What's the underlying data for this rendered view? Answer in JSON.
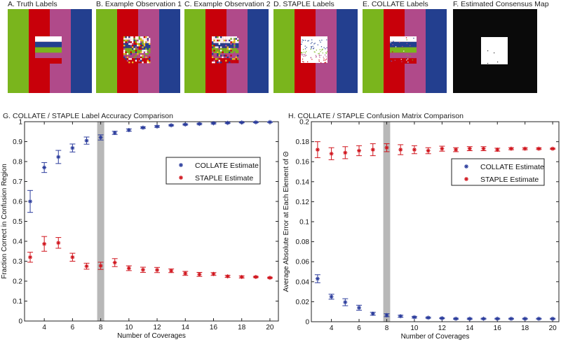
{
  "colors": {
    "green": "#7ab51d",
    "red": "#c8000a",
    "pink": "#b04a8a",
    "blue": "#233f8f",
    "white": "#ffffff",
    "black": "#0a0a0a",
    "collate": "#2b3c9c",
    "staple": "#d0141c",
    "band": "#b8b8b8"
  },
  "panels": [
    {
      "title": "A. Truth Labels",
      "kind": "truth"
    },
    {
      "title": "B. Example Observation 1",
      "kind": "noisy1"
    },
    {
      "title": "C. Example Observation 2",
      "kind": "noisy2"
    },
    {
      "title": "D. STAPLE Labels",
      "kind": "staple"
    },
    {
      "title": "E. COLLATE Labels",
      "kind": "collate"
    },
    {
      "title": "F. Estimated Consensus Map",
      "kind": "consensus"
    }
  ],
  "chart_data": [
    {
      "type": "scatter",
      "title": "G. COLLATE / STAPLE Label Accuracy Comparison",
      "xlabel": "Number of Coverages",
      "ylabel": "Fraction Correct in Confusion Region",
      "xlim": [
        2.6,
        20.6
      ],
      "ylim": [
        0,
        1
      ],
      "xticks": [
        4,
        6,
        8,
        10,
        12,
        14,
        16,
        18,
        20
      ],
      "yticks": [
        "0",
        "0.1",
        "0.2",
        "0.3",
        "0.4",
        "0.5",
        "0.6",
        "0.7",
        "0.8",
        "0.9",
        "1"
      ],
      "highlight_x": 8,
      "legend_position": "upper-right",
      "x": [
        3,
        4,
        5,
        6,
        7,
        8,
        9,
        10,
        11,
        12,
        13,
        14,
        15,
        16,
        17,
        18,
        19,
        20
      ],
      "series": [
        {
          "name": "COLLATE Estimate",
          "color_key": "collate",
          "values": [
            0.6,
            0.77,
            0.823,
            0.868,
            0.905,
            0.921,
            0.944,
            0.958,
            0.97,
            0.976,
            0.982,
            0.986,
            0.989,
            0.992,
            0.994,
            0.996,
            0.997,
            0.998
          ],
          "errors": [
            0.055,
            0.025,
            0.033,
            0.02,
            0.018,
            0.013,
            0.008,
            0.006,
            0.004,
            0.004,
            0.003,
            0.003,
            0.003,
            0.003,
            0.003,
            0.002,
            0.002,
            0.002
          ]
        },
        {
          "name": "STAPLE Estimate",
          "color_key": "staple",
          "values": [
            0.32,
            0.387,
            0.392,
            0.32,
            0.275,
            0.277,
            0.293,
            0.265,
            0.257,
            0.256,
            0.252,
            0.239,
            0.234,
            0.236,
            0.224,
            0.221,
            0.221,
            0.217
          ],
          "errors": [
            0.025,
            0.037,
            0.027,
            0.02,
            0.015,
            0.018,
            0.02,
            0.012,
            0.013,
            0.013,
            0.009,
            0.01,
            0.01,
            0.007,
            0.005,
            0.005,
            0.003,
            0.003
          ]
        }
      ]
    },
    {
      "type": "scatter",
      "title": "H. COLLATE / STAPLE Confusion Matrix Comparison",
      "xlabel": "Number of Coverages",
      "ylabel": "Average Absolute Error at Each Element of Θ",
      "xlim": [
        2.55,
        20.45
      ],
      "ylim": [
        0,
        0.2
      ],
      "xticks": [
        4,
        6,
        8,
        10,
        12,
        14,
        16,
        18,
        20
      ],
      "yticks": [
        "0",
        "0.02",
        "0.04",
        "0.06",
        "0.08",
        "0.1",
        "0.12",
        "0.14",
        "0.16",
        "0.18",
        "0.2"
      ],
      "highlight_x": 8,
      "legend_position": "upper-right",
      "x": [
        3,
        4,
        5,
        6,
        7,
        8,
        9,
        10,
        11,
        12,
        13,
        14,
        15,
        16,
        17,
        18,
        19,
        20
      ],
      "series": [
        {
          "name": "COLLATE Estimate",
          "color_key": "collate",
          "values": [
            0.043,
            0.025,
            0.0195,
            0.014,
            0.008,
            0.0065,
            0.0055,
            0.0045,
            0.004,
            0.0035,
            0.003,
            0.003,
            0.003,
            0.003,
            0.003,
            0.003,
            0.003,
            0.003
          ],
          "errors": [
            0.004,
            0.0025,
            0.0035,
            0.0025,
            0.0015,
            0.0015,
            0.001,
            0.0008,
            0.0006,
            0.0005,
            0.0005,
            0.0005,
            0.0004,
            0.0004,
            0.0004,
            0.0004,
            0.0004,
            0.0004
          ]
        },
        {
          "name": "STAPLE Estimate",
          "color_key": "staple",
          "values": [
            0.172,
            0.168,
            0.169,
            0.171,
            0.172,
            0.174,
            0.172,
            0.172,
            0.171,
            0.173,
            0.172,
            0.173,
            0.173,
            0.172,
            0.173,
            0.173,
            0.173,
            0.173
          ],
          "errors": [
            0.008,
            0.006,
            0.006,
            0.005,
            0.006,
            0.004,
            0.005,
            0.004,
            0.003,
            0.0025,
            0.002,
            0.002,
            0.002,
            0.0015,
            0.001,
            0.001,
            0.0008,
            0.0005
          ]
        }
      ]
    }
  ]
}
